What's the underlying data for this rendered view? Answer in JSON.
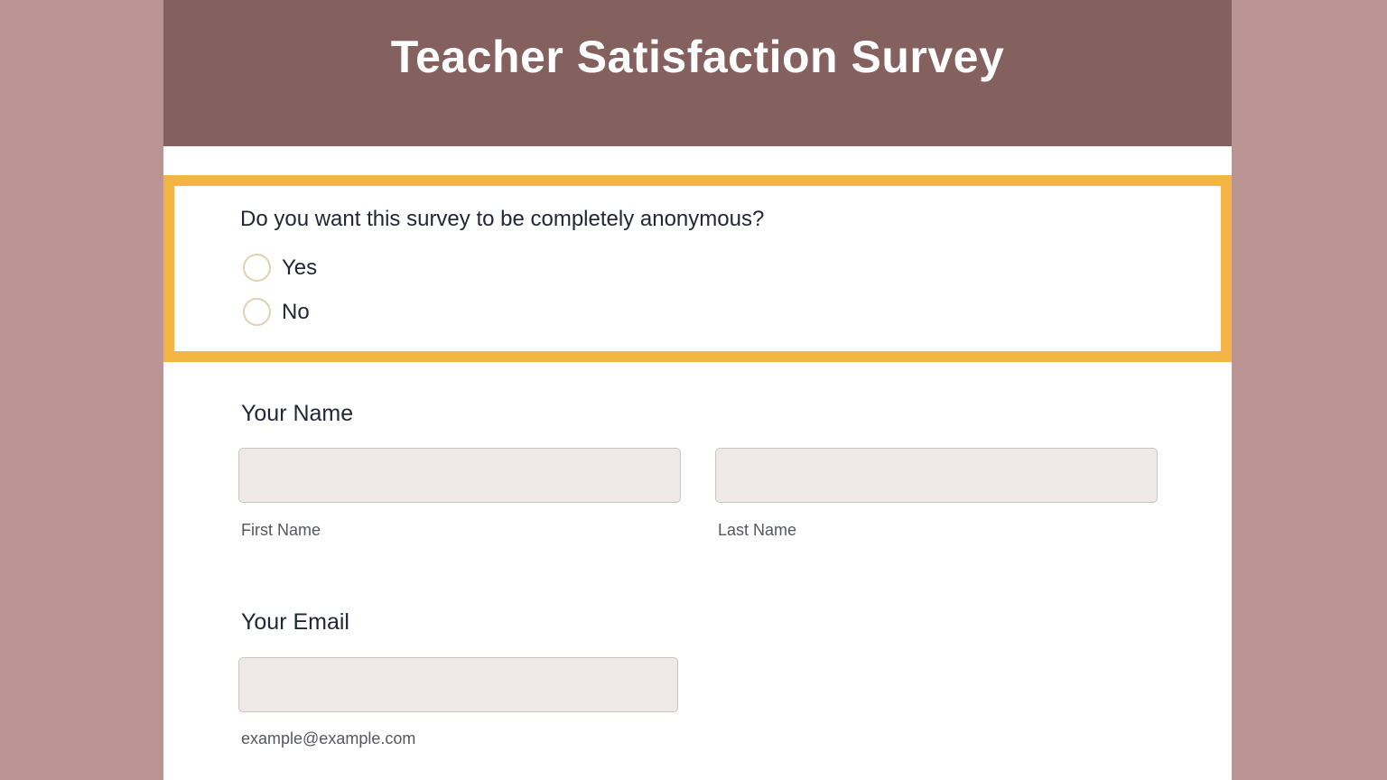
{
  "colors": {
    "background": "#bb9494",
    "header": "#84605e",
    "highlight": "#f2b544",
    "input_bg": "#eee8e8"
  },
  "header": {
    "title": "Teacher Satisfaction Survey"
  },
  "question": {
    "text": "Do you want this survey to be completely anonymous?",
    "options": [
      {
        "label": "Yes",
        "selected": false
      },
      {
        "label": "No",
        "selected": false
      }
    ]
  },
  "name": {
    "label": "Your Name",
    "first_value": "",
    "first_sublabel": "First Name",
    "last_value": "",
    "last_sublabel": "Last Name"
  },
  "email": {
    "label": "Your Email",
    "value": "",
    "sublabel": "example@example.com"
  }
}
